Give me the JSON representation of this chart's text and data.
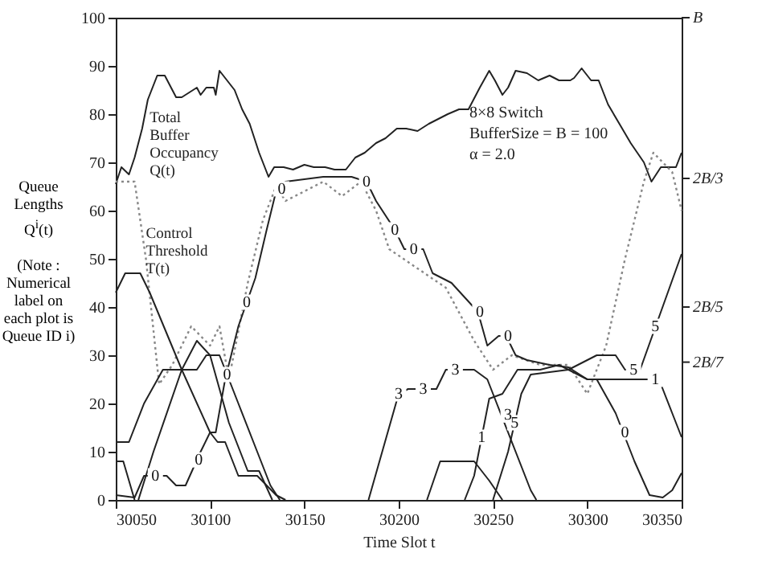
{
  "chart_data": {
    "type": "line",
    "xlabel": "Time Slot t",
    "ylabel": "Queue\nLengths\nQ$^{i}$(t)\n\n(Note :\nNumerical\nlabel on\neach plot is\nQueue ID i)",
    "xlim": [
      30050,
      30350
    ],
    "ylim": [
      0,
      100
    ],
    "xticks": [
      30050,
      30100,
      30150,
      30200,
      30250,
      30300,
      30350
    ],
    "yticks": [
      0,
      10,
      20,
      30,
      40,
      50,
      60,
      70,
      80,
      90,
      100
    ],
    "ref_lines": [
      {
        "axis": "y",
        "value": 100,
        "label": "B"
      },
      {
        "axis": "y",
        "value": 66.67,
        "label": "2B/3"
      },
      {
        "axis": "y",
        "value": 40,
        "label": "2B/5"
      },
      {
        "axis": "y",
        "value": 28.57,
        "label": "2B/7"
      }
    ],
    "line_style": "solid",
    "marker": "none",
    "grid": false,
    "series": [
      {
        "color": "#222222",
        "x": [
          30050,
          30053,
          30057,
          30060,
          30064,
          30067,
          30072,
          30076,
          30082,
          30085,
          30089,
          30093,
          30095,
          30098,
          30102,
          30103,
          30105,
          30113,
          30117,
          30121,
          30126,
          30131,
          30134,
          30139,
          30144,
          30150,
          30155,
          30161,
          30166,
          30172,
          30177,
          30182,
          30188,
          30193,
          30199,
          30204,
          30210,
          30216,
          30221,
          30226,
          30232,
          30237,
          30243,
          30248,
          30251,
          30255,
          30258,
          30262,
          30268,
          30274,
          30280,
          30285,
          30291,
          30293,
          30297,
          30302,
          30306,
          30311,
          30317,
          30323,
          30330,
          30334,
          30339,
          30347,
          30350
        ],
        "values": [
          65.5,
          69,
          67.5,
          71,
          77,
          83,
          88,
          88,
          83.5,
          83.5,
          84.5,
          85.5,
          84,
          85.5,
          85.5,
          84,
          89,
          85,
          81,
          78,
          72,
          67,
          69,
          69,
          68.5,
          69.5,
          69,
          69,
          68.5,
          68.5,
          71,
          72,
          74,
          75,
          77,
          77,
          76.5,
          78,
          79,
          80,
          81,
          81,
          85.5,
          89,
          87,
          84,
          85.5,
          89,
          88.5,
          87,
          88,
          87,
          87,
          87.5,
          89.5,
          87,
          87,
          82,
          78,
          74,
          70,
          66,
          69,
          69,
          72
        ]
      },
      {
        "color": "#888888",
        "line_style": "dotted",
        "x": [
          30050,
          30060,
          30066,
          30073,
          30080,
          30090,
          30100,
          30105,
          30110,
          30120,
          30128,
          30135,
          30140,
          30150,
          30160,
          30170,
          30180,
          30188,
          30195,
          30210,
          30225,
          30240,
          30250,
          30260,
          30275,
          30290,
          30300,
          30310,
          30320,
          30330,
          30335,
          30345,
          30350
        ],
        "values": [
          66,
          66,
          50,
          24,
          28,
          36,
          32,
          36,
          25,
          45,
          58,
          65,
          62,
          64,
          66,
          63,
          66,
          60,
          52,
          48,
          44,
          33,
          27,
          30,
          28,
          28,
          22,
          32,
          50,
          66,
          72,
          68,
          60
        ]
      },
      {
        "color": "#222222",
        "x": [
          30050,
          30060,
          30065,
          30077,
          30082,
          30087,
          30095,
          30100,
          30103,
          30108,
          30115,
          30124,
          30130,
          30135,
          30140,
          30160,
          30175,
          30183,
          30188,
          30198,
          30203,
          30213,
          30218,
          30228,
          30235,
          30242,
          30247,
          30253,
          30257,
          30262,
          30268,
          30280,
          30290,
          30300,
          30305,
          30315,
          30325,
          30333,
          30340,
          30345,
          30350
        ],
        "values": [
          1,
          0.5,
          5,
          5,
          3,
          3,
          10,
          14,
          14,
          25,
          36,
          46,
          56,
          64,
          66,
          67,
          67,
          66,
          62,
          56,
          52,
          52,
          47,
          45,
          42,
          39,
          32,
          34,
          34,
          30,
          29,
          28,
          27.5,
          25,
          25,
          18,
          8,
          1,
          0.5,
          2,
          5.6
        ]
      },
      {
        "color": "#222222",
        "x": [
          30050,
          30055,
          30063,
          30068,
          30085,
          30100,
          30104,
          30108,
          30115,
          30125,
          30130,
          30135,
          30140
        ],
        "values": [
          43,
          47,
          47,
          43,
          27,
          14,
          12,
          12,
          5,
          5,
          3,
          1,
          0
        ]
      },
      {
        "color": "#222222",
        "x": [
          30050,
          30057,
          30065,
          30075,
          30093,
          30098,
          30105,
          30115,
          30125,
          30132,
          30137
        ],
        "values": [
          12,
          12,
          20,
          27,
          27,
          30,
          30,
          20,
          10,
          3,
          0
        ]
      },
      {
        "color": "#222222",
        "x": [
          30050,
          30054,
          30060
        ],
        "values": [
          8,
          8,
          0
        ]
      },
      {
        "color": "#222222",
        "x": [
          30062,
          30070,
          30085,
          30093,
          30100,
          30110,
          30120,
          30126,
          30133
        ],
        "values": [
          0,
          10,
          27,
          33,
          30,
          16,
          6,
          6,
          0
        ]
      },
      {
        "color": "#222222",
        "x": [
          30184,
          30200,
          30205,
          30220,
          30225,
          30240,
          30247,
          30252,
          30270,
          30273
        ],
        "values": [
          0,
          22,
          23,
          23,
          27,
          27,
          25,
          20,
          2,
          0
        ]
      },
      {
        "color": "#222222",
        "x": [
          30215,
          30222,
          30240,
          30248,
          30255
        ],
        "values": [
          0,
          8,
          8,
          4,
          0
        ]
      },
      {
        "color": "#222222",
        "x": [
          30235,
          30240,
          30245,
          30248,
          30255,
          30263,
          30275,
          30285,
          30295,
          30300,
          30320,
          30338,
          30345,
          30350
        ],
        "values": [
          0,
          5,
          15,
          21,
          22,
          27,
          27,
          28,
          26,
          25,
          25,
          25,
          18,
          13
        ]
      },
      {
        "color": "#222222",
        "x": [
          30250,
          30258,
          30265,
          30270,
          30290,
          30305,
          30315,
          30320,
          30328,
          30350
        ],
        "values": [
          0,
          10,
          22,
          26,
          27,
          30,
          30,
          27,
          27,
          51
        ]
      }
    ],
    "annotations": [
      {
        "text": "Total\nBuffer\nOccupancy\n  Q(t)",
        "x": 30068,
        "y": 81
      },
      {
        "text": "Control\nThreshold\n  T(t)",
        "x": 30066,
        "y": 57
      },
      "8×8 Switch\nBufferSize = B = 100\nα = 2.0",
      {
        "text": "0",
        "x": 30071,
        "y": 5
      },
      {
        "text": "0",
        "x": 30094,
        "y": 8.3
      },
      {
        "text": "0",
        "x": 30109,
        "y": 26
      },
      {
        "text": "0",
        "x": 30119.5,
        "y": 41
      },
      {
        "text": "0",
        "x": 30138,
        "y": 64.5
      },
      {
        "text": "0",
        "x": 30183,
        "y": 66
      },
      {
        "text": "0",
        "x": 30198,
        "y": 56
      },
      {
        "text": "0",
        "x": 30208,
        "y": 52
      },
      {
        "text": "0",
        "x": 30243,
        "y": 39
      },
      {
        "text": "0",
        "x": 30258,
        "y": 34
      },
      {
        "text": "0",
        "x": 30320,
        "y": 14
      },
      {
        "text": "3",
        "x": 30200,
        "y": 22
      },
      {
        "text": "3",
        "x": 30213,
        "y": 23
      },
      {
        "text": "3",
        "x": 30230,
        "y": 27
      },
      {
        "text": "3",
        "x": 30258,
        "y": 17.6
      },
      {
        "text": "5",
        "x": 30261.5,
        "y": 16
      },
      {
        "text": "5",
        "x": 30324.5,
        "y": 27
      },
      {
        "text": "5",
        "x": 30336,
        "y": 36
      },
      {
        "text": "1",
        "x": 30244,
        "y": 13
      },
      {
        "text": "1",
        "x": 30336,
        "y": 25
      }
    ]
  }
}
